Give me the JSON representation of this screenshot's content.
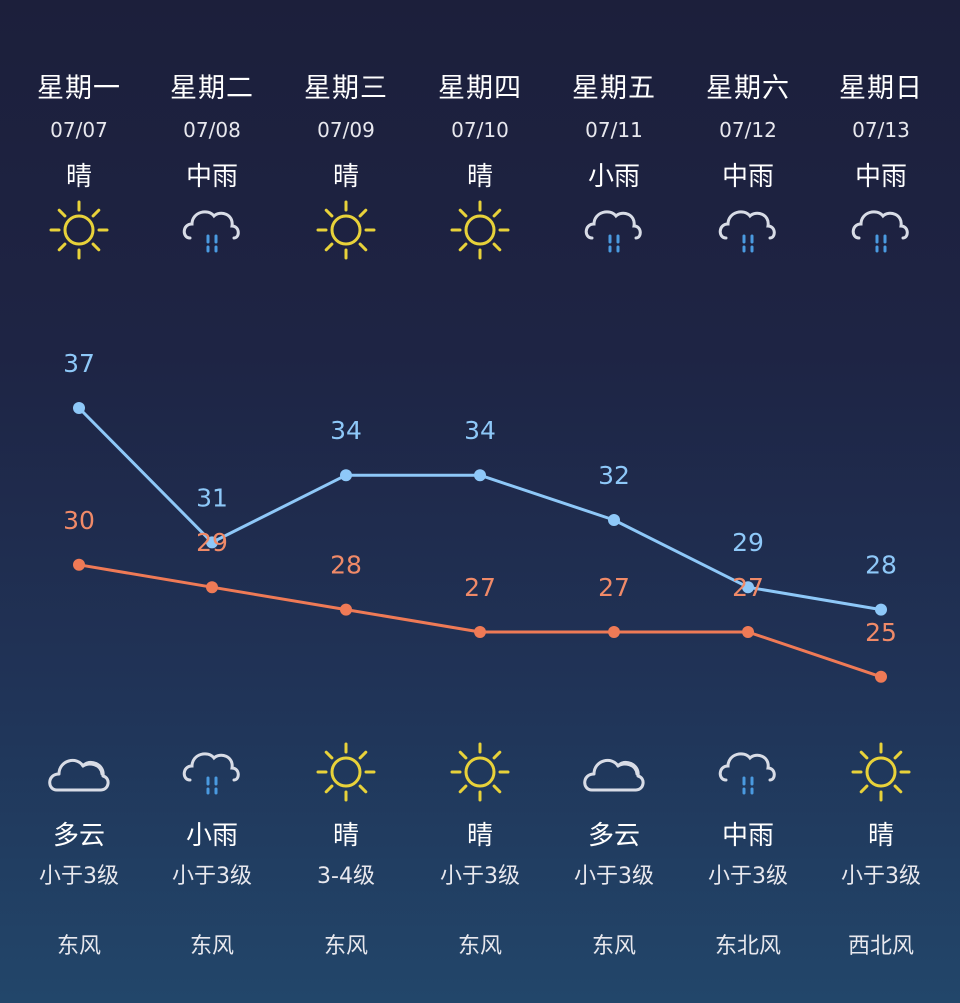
{
  "days": [
    {
      "weekday": "星期一",
      "date": "07/07",
      "day_cond": "晴",
      "day_icon": "sun-icon",
      "night_icon": "cloud-icon",
      "night_cond": "多云",
      "wind_level": "小于3级",
      "wind_dir": "东风"
    },
    {
      "weekday": "星期二",
      "date": "07/08",
      "day_cond": "中雨",
      "day_icon": "rain-icon",
      "night_icon": "rain-icon",
      "night_cond": "小雨",
      "wind_level": "小于3级",
      "wind_dir": "东风"
    },
    {
      "weekday": "星期三",
      "date": "07/09",
      "day_cond": "晴",
      "day_icon": "sun-icon",
      "night_icon": "sun-icon",
      "night_cond": "晴",
      "wind_level": "3-4级",
      "wind_dir": "东风"
    },
    {
      "weekday": "星期四",
      "date": "07/10",
      "day_cond": "晴",
      "day_icon": "sun-icon",
      "night_icon": "sun-icon",
      "night_cond": "晴",
      "wind_level": "小于3级",
      "wind_dir": "东风"
    },
    {
      "weekday": "星期五",
      "date": "07/11",
      "day_cond": "小雨",
      "day_icon": "rain-icon",
      "night_icon": "cloud-icon",
      "night_cond": "多云",
      "wind_level": "小于3级",
      "wind_dir": "东风"
    },
    {
      "weekday": "星期六",
      "date": "07/12",
      "day_cond": "中雨",
      "day_icon": "rain-icon",
      "night_icon": "rain-icon",
      "night_cond": "中雨",
      "wind_level": "小于3级",
      "wind_dir": "东北风"
    },
    {
      "weekday": "星期日",
      "date": "07/13",
      "day_cond": "中雨",
      "day_icon": "rain-icon",
      "night_icon": "sun-icon",
      "night_cond": "晴",
      "wind_level": "小于3级",
      "wind_dir": "西北风"
    }
  ],
  "colors": {
    "high_line": "#8ec8f8",
    "low_line": "#ef7a56",
    "sun": "#e8d23a",
    "cloud": "#d8dce6",
    "rain": "#4a9ae0"
  },
  "chart_data": {
    "type": "line",
    "categories": [
      "07/07",
      "07/08",
      "07/09",
      "07/10",
      "07/11",
      "07/12",
      "07/13"
    ],
    "series": [
      {
        "values": [
          37,
          31,
          34,
          34,
          32,
          29,
          28
        ]
      },
      {
        "values": [
          30,
          29,
          28,
          27,
          27,
          27,
          25
        ]
      }
    ],
    "ylim": [
      20,
      40
    ],
    "grid": false
  }
}
